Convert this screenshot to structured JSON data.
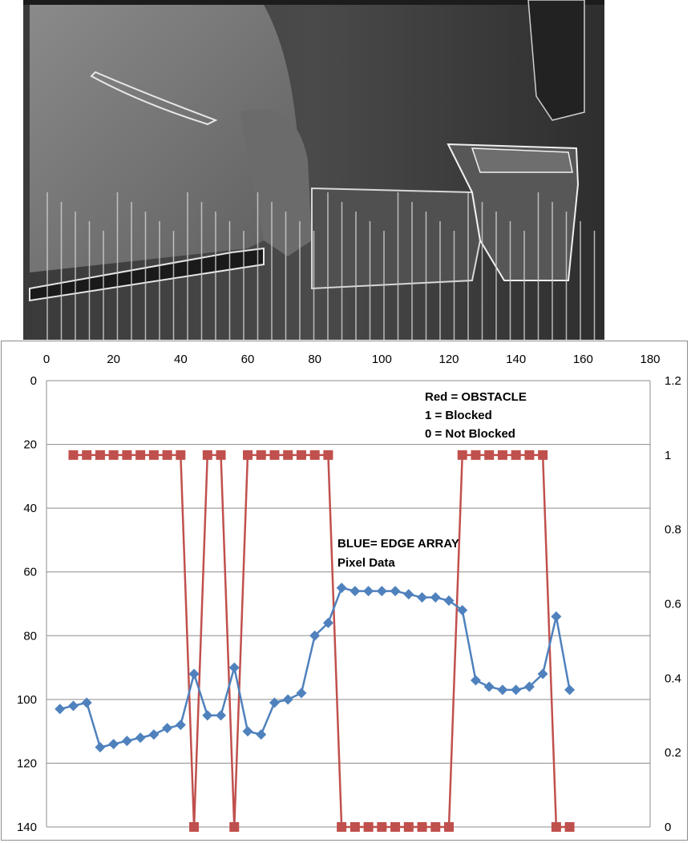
{
  "chart_data": {
    "type": "line",
    "title": "",
    "xlabel": "",
    "ylabel": "",
    "x_axis": {
      "position": "top",
      "range": [
        0,
        180
      ],
      "ticks": [
        "0",
        "20",
        "40",
        "60",
        "80",
        "100",
        "120",
        "140",
        "160",
        "180"
      ]
    },
    "y_left": {
      "inverted": true,
      "range": [
        0,
        140
      ],
      "ticks": [
        "0",
        "20",
        "40",
        "60",
        "80",
        "100",
        "120",
        "140"
      ]
    },
    "y_right": {
      "range": [
        0,
        1.2
      ],
      "ticks": [
        "1.2",
        "1",
        "0.8",
        "0.6",
        "0.4",
        "0.2",
        "0"
      ]
    },
    "grid": "horizontal",
    "series": [
      {
        "name": "BLUE= EDGE ARRAY",
        "axis": "left",
        "color": "#4f81bd",
        "marker": "diamond",
        "x": [
          4,
          8,
          12,
          16,
          20,
          24,
          28,
          32,
          36,
          40,
          44,
          48,
          52,
          56,
          60,
          64,
          68,
          72,
          76,
          80,
          84,
          88,
          92,
          96,
          100,
          104,
          108,
          112,
          116,
          120,
          124,
          128,
          132,
          136,
          140,
          144,
          148,
          152,
          156
        ],
        "values": [
          103,
          102,
          101,
          115,
          114,
          113,
          112,
          111,
          109,
          108,
          92,
          105,
          105,
          90,
          110,
          111,
          101,
          100,
          98,
          80,
          76,
          65,
          66,
          66,
          66,
          66,
          67,
          68,
          68,
          69,
          72,
          94,
          96,
          97,
          97,
          96,
          92,
          74,
          97
        ]
      },
      {
        "name": "Red = OBSTACLE",
        "axis": "right",
        "color": "#c0504d",
        "marker": "square",
        "x": [
          8,
          12,
          16,
          20,
          24,
          28,
          32,
          36,
          40,
          44,
          48,
          52,
          56,
          60,
          64,
          68,
          72,
          76,
          80,
          84,
          88,
          92,
          96,
          100,
          104,
          108,
          112,
          116,
          120,
          124,
          128,
          132,
          136,
          140,
          144,
          148,
          152,
          156
        ],
        "values": [
          1,
          1,
          1,
          1,
          1,
          1,
          1,
          1,
          1,
          0,
          1,
          1,
          0,
          1,
          1,
          1,
          1,
          1,
          1,
          1,
          0,
          0,
          0,
          0,
          0,
          0,
          0,
          0,
          0,
          1,
          1,
          1,
          1,
          1,
          1,
          1,
          0,
          0
        ]
      }
    ],
    "annotations": {
      "red_title": "Red = OBSTACLE",
      "red_line1": "1 = Blocked",
      "red_line2": "0 = Not Blocked",
      "blue_title": "BLUE= EDGE ARRAY",
      "blue_line1": "Pixel Data"
    }
  }
}
